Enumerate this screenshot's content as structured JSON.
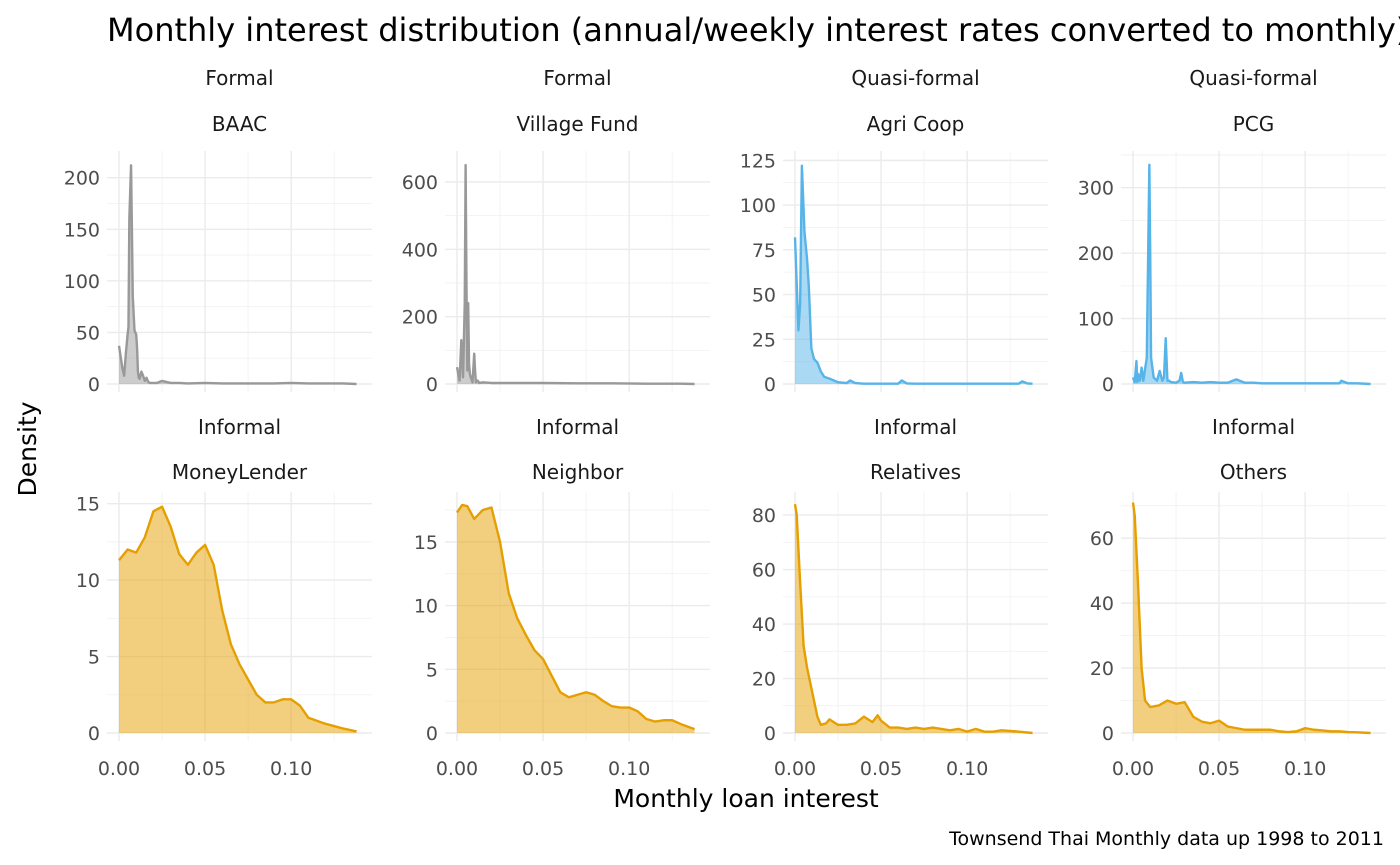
{
  "colors": {
    "formal": "#999999",
    "quasi": "#56B4E9",
    "informal": "#E69F00"
  },
  "chart_data": {
    "type": "area",
    "title": "Monthly interest distribution (annual/weekly interest rates converted to monthly)",
    "xlabel": "Monthly loan interest",
    "ylabel": "Density",
    "caption": "Townsend Thai Monthly data up 1998 to 2011",
    "grid": true,
    "legend": "none",
    "xlim": [
      0,
      0.14
    ],
    "x_ticks": [
      "0.00",
      "0.05",
      "0.10"
    ],
    "panels": [
      {
        "group": "Formal",
        "name": "BAAC",
        "color_key": "formal",
        "ylim": [
          0,
          222
        ],
        "y_ticks": [
          0,
          50,
          100,
          150,
          200
        ],
        "x": [
          0,
          0.002,
          0.003,
          0.004,
          0.005,
          0.0055,
          0.006,
          0.007,
          0.0075,
          0.008,
          0.009,
          0.01,
          0.0105,
          0.011,
          0.0115,
          0.012,
          0.013,
          0.014,
          0.015,
          0.016,
          0.017,
          0.018,
          0.019,
          0.02,
          0.022,
          0.025,
          0.03,
          0.035,
          0.04,
          0.05,
          0.06,
          0.07,
          0.08,
          0.09,
          0.1,
          0.11,
          0.12,
          0.13,
          0.138
        ],
        "y": [
          37,
          15,
          8,
          30,
          48,
          55,
          160,
          212,
          150,
          85,
          52,
          48,
          35,
          12,
          6,
          5,
          12,
          8,
          3,
          6,
          2,
          1,
          1,
          1,
          1,
          3,
          1,
          1,
          0.5,
          1,
          0.5,
          0.5,
          0.5,
          0.5,
          1,
          0.5,
          0.5,
          0.5,
          0
        ]
      },
      {
        "group": "Formal",
        "name": "Village Fund",
        "color_key": "formal",
        "ylim": [
          0,
          680
        ],
        "y_ticks": [
          0,
          200,
          400,
          600
        ],
        "x": [
          0,
          0.0015,
          0.0025,
          0.0035,
          0.0045,
          0.005,
          0.0055,
          0.006,
          0.0065,
          0.007,
          0.0075,
          0.008,
          0.009,
          0.01,
          0.0105,
          0.011,
          0.012,
          0.013,
          0.015,
          0.02,
          0.03,
          0.05,
          0.07,
          0.09,
          0.11,
          0.13,
          0.138
        ],
        "y": [
          50,
          10,
          130,
          20,
          240,
          650,
          300,
          40,
          240,
          60,
          30,
          20,
          5,
          90,
          40,
          5,
          10,
          3,
          5,
          3,
          3,
          3,
          2,
          2,
          1,
          1,
          0
        ]
      },
      {
        "group": "Quasi-formal",
        "name": "Agri Coop",
        "color_key": "quasi",
        "ylim": [
          0,
          128
        ],
        "y_ticks": [
          0,
          25,
          50,
          75,
          100,
          125
        ],
        "x": [
          0,
          0.002,
          0.003,
          0.004,
          0.0055,
          0.007,
          0.008,
          0.0095,
          0.011,
          0.013,
          0.015,
          0.017,
          0.02,
          0.025,
          0.03,
          0.032,
          0.035,
          0.04,
          0.05,
          0.06,
          0.062,
          0.065,
          0.07,
          0.09,
          0.11,
          0.13,
          0.132,
          0.135,
          0.138
        ],
        "y": [
          82,
          30,
          45,
          122,
          85,
          70,
          55,
          20,
          14,
          12,
          7,
          4,
          3,
          1,
          0.5,
          2,
          0.5,
          0.2,
          0.2,
          0.2,
          2,
          0.3,
          0.2,
          0.2,
          0.2,
          0.2,
          1.5,
          0.3,
          0.2
        ]
      },
      {
        "group": "Quasi-formal",
        "name": "PCG",
        "color_key": "quasi",
        "ylim": [
          0,
          350
        ],
        "y_ticks": [
          0,
          100,
          200,
          300
        ],
        "x": [
          0,
          0.001,
          0.002,
          0.0025,
          0.003,
          0.004,
          0.005,
          0.006,
          0.008,
          0.0095,
          0.01,
          0.0105,
          0.012,
          0.014,
          0.0155,
          0.017,
          0.018,
          0.019,
          0.02,
          0.021,
          0.022,
          0.025,
          0.027,
          0.028,
          0.029,
          0.03,
          0.035,
          0.04,
          0.045,
          0.05,
          0.055,
          0.06,
          0.065,
          0.07,
          0.075,
          0.1,
          0.12,
          0.121,
          0.125,
          0.13,
          0.138
        ],
        "y": [
          10,
          3,
          35,
          3,
          15,
          5,
          25,
          5,
          40,
          335,
          200,
          40,
          10,
          5,
          20,
          5,
          10,
          70,
          5,
          5,
          3,
          2,
          5,
          17,
          3,
          2,
          3,
          2,
          3,
          2,
          2,
          7,
          2,
          2,
          1,
          1,
          1,
          5,
          1,
          1,
          0
        ]
      },
      {
        "group": "Informal",
        "name": "MoneyLender",
        "color_key": "informal",
        "ylim": [
          0,
          15.5
        ],
        "y_ticks": [
          0,
          5,
          10,
          15
        ],
        "x": [
          0,
          0.005,
          0.01,
          0.015,
          0.02,
          0.025,
          0.03,
          0.035,
          0.04,
          0.045,
          0.05,
          0.055,
          0.06,
          0.065,
          0.07,
          0.075,
          0.08,
          0.085,
          0.09,
          0.095,
          0.1,
          0.105,
          0.11,
          0.12,
          0.13,
          0.138
        ],
        "y": [
          11.3,
          12,
          11.8,
          12.8,
          14.5,
          14.8,
          13.5,
          11.7,
          11,
          11.8,
          12.3,
          11,
          8,
          5.8,
          4.5,
          3.5,
          2.5,
          2,
          2,
          2.2,
          2.2,
          1.8,
          1,
          0.6,
          0.3,
          0.1
        ]
      },
      {
        "group": "Informal",
        "name": "Neighbor",
        "color_key": "informal",
        "ylim": [
          0,
          18.6
        ],
        "y_ticks": [
          0,
          5,
          10,
          15
        ],
        "x": [
          0,
          0.003,
          0.006,
          0.01,
          0.015,
          0.02,
          0.025,
          0.03,
          0.035,
          0.04,
          0.045,
          0.05,
          0.055,
          0.06,
          0.065,
          0.07,
          0.075,
          0.08,
          0.085,
          0.09,
          0.095,
          0.1,
          0.105,
          0.11,
          0.115,
          0.12,
          0.125,
          0.13,
          0.138
        ],
        "y": [
          17.3,
          17.9,
          17.8,
          16.8,
          17.5,
          17.7,
          15,
          11,
          9,
          7.7,
          6.5,
          5.8,
          4.5,
          3.2,
          2.8,
          3,
          3.2,
          3,
          2.5,
          2.1,
          2,
          2,
          1.7,
          1.1,
          0.9,
          1,
          1,
          0.7,
          0.3
        ]
      },
      {
        "group": "Informal",
        "name": "Relatives",
        "color_key": "informal",
        "ylim": [
          0,
          87
        ],
        "y_ticks": [
          0,
          20,
          40,
          60,
          80
        ],
        "x": [
          0,
          0.001,
          0.003,
          0.005,
          0.007,
          0.01,
          0.013,
          0.015,
          0.018,
          0.02,
          0.025,
          0.03,
          0.035,
          0.04,
          0.045,
          0.048,
          0.05,
          0.055,
          0.06,
          0.065,
          0.07,
          0.075,
          0.08,
          0.085,
          0.09,
          0.095,
          0.1,
          0.105,
          0.11,
          0.115,
          0.12,
          0.13,
          0.138
        ],
        "y": [
          84,
          80,
          55,
          32,
          24,
          15,
          6,
          3,
          3.5,
          5,
          3,
          3,
          3.5,
          6,
          4,
          6.5,
          4.5,
          2,
          2,
          1.5,
          2,
          1.5,
          2,
          1.5,
          1,
          1.5,
          0.5,
          1.5,
          0.5,
          0.5,
          1,
          0.5,
          0
        ]
      },
      {
        "group": "Informal",
        "name": "Others",
        "color_key": "informal",
        "ylim": [
          0,
          73
        ],
        "y_ticks": [
          0,
          20,
          40,
          60
        ],
        "x": [
          0,
          0.001,
          0.003,
          0.005,
          0.007,
          0.01,
          0.015,
          0.02,
          0.025,
          0.03,
          0.035,
          0.04,
          0.045,
          0.05,
          0.055,
          0.06,
          0.065,
          0.07,
          0.075,
          0.08,
          0.085,
          0.09,
          0.095,
          0.1,
          0.105,
          0.11,
          0.115,
          0.12,
          0.125,
          0.13,
          0.138
        ],
        "y": [
          71,
          67,
          45,
          20,
          10,
          8,
          8.5,
          10,
          9,
          9.5,
          5,
          3.5,
          3,
          3.8,
          2,
          1.5,
          1,
          1,
          1,
          1,
          0.5,
          0.3,
          0.5,
          1.5,
          1,
          0.8,
          0.5,
          0.5,
          0.3,
          0.2,
          0
        ]
      }
    ]
  }
}
